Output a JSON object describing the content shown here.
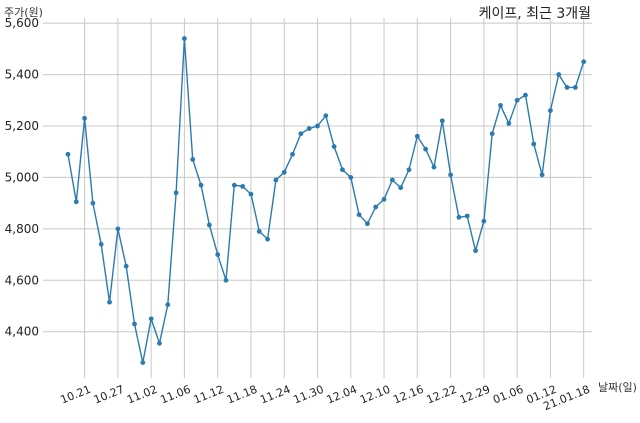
{
  "chart_data": {
    "type": "line",
    "title": "케이프, 최근 3개월",
    "ylabel": "주가(원)",
    "xlabel": "날짜(일)",
    "ylim": [
      4220,
      5620
    ],
    "yticks": [
      4400,
      4600,
      4800,
      5000,
      5200,
      5400,
      5600
    ],
    "ytick_labels": [
      "4,400",
      "4,600",
      "4,800",
      "5,000",
      "5,200",
      "5,400",
      "5,600"
    ],
    "xtick_labels": [
      "10.21",
      "10.27",
      "11.02",
      "11.06",
      "11.12",
      "11.18",
      "11.24",
      "11.30",
      "12.04",
      "12.10",
      "12.16",
      "12.22",
      "12.29",
      "01.06",
      "01.12",
      "21.01.18"
    ],
    "xtick_positions": [
      2,
      6,
      10,
      14,
      18,
      22,
      26,
      30,
      34,
      38,
      42,
      46,
      50,
      54,
      58,
      62
    ],
    "grid": true,
    "line_color": "#2b7bb0",
    "series": [
      {
        "x": [
          0,
          1,
          2,
          3,
          4,
          5,
          6,
          7,
          8,
          9,
          10,
          11,
          12,
          13,
          14,
          15,
          16,
          17,
          18,
          19,
          20,
          21,
          22,
          23,
          24,
          25,
          26,
          27,
          28,
          29,
          30,
          31,
          32,
          33,
          34,
          35,
          36,
          37,
          38,
          39,
          40,
          41,
          42,
          43,
          44,
          45,
          46,
          47,
          48,
          49,
          50,
          51,
          52,
          53,
          54,
          55,
          56,
          57,
          58,
          59,
          60,
          61,
          62
        ],
        "values": [
          5090,
          4905,
          5230,
          4900,
          4740,
          4515,
          4800,
          4655,
          4430,
          4280,
          4450,
          4355,
          4505,
          4940,
          5540,
          5070,
          4970,
          4815,
          4700,
          4600,
          4970,
          4965,
          4935,
          4790,
          4760,
          4990,
          5020,
          5090,
          5170,
          5190,
          5200,
          5240,
          5120,
          5030,
          5000,
          4855,
          4820,
          4885,
          4915,
          4990,
          4960,
          5030,
          5160,
          5110,
          5040,
          5220,
          5010,
          4845,
          4850,
          4715,
          4830,
          5170,
          5280,
          5210,
          5300,
          5320,
          5130,
          5010,
          5260,
          5400,
          5350,
          5350,
          5450
        ]
      }
    ]
  }
}
